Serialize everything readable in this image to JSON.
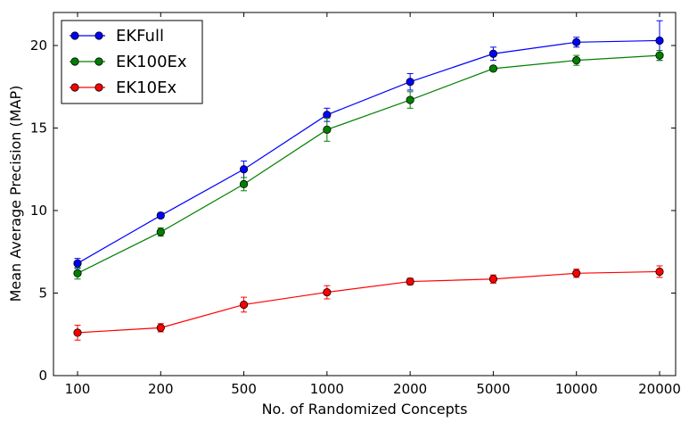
{
  "chart_data": {
    "type": "line",
    "xlabel": "No. of Randomized Concepts",
    "ylabel": "Mean Average Precision (MAP)",
    "categories": [
      "100",
      "200",
      "500",
      "1000",
      "2000",
      "5000",
      "10000",
      "20000"
    ],
    "ylim": [
      0,
      22
    ],
    "yticks": [
      "0",
      "5",
      "10",
      "15",
      "20"
    ],
    "grid": false,
    "legend_position": "top-left",
    "series": [
      {
        "name": "EKFull",
        "color": "#0000ff",
        "values": [
          6.8,
          9.7,
          12.5,
          15.8,
          17.8,
          19.5,
          20.2,
          20.3
        ],
        "errors": [
          0.3,
          0.15,
          0.5,
          0.4,
          0.5,
          0.4,
          0.3,
          1.2
        ]
      },
      {
        "name": "EK100Ex",
        "color": "#008000",
        "values": [
          6.2,
          8.7,
          11.6,
          14.9,
          16.7,
          18.6,
          19.1,
          19.4
        ],
        "errors": [
          0.35,
          0.25,
          0.4,
          0.7,
          0.5,
          0.15,
          0.3,
          0.3
        ]
      },
      {
        "name": "EK10Ex",
        "color": "#ff0000",
        "values": [
          2.6,
          2.9,
          4.3,
          5.05,
          5.7,
          5.85,
          6.2,
          6.3
        ],
        "errors": [
          0.45,
          0.25,
          0.45,
          0.4,
          0.2,
          0.25,
          0.25,
          0.35
        ]
      }
    ]
  }
}
